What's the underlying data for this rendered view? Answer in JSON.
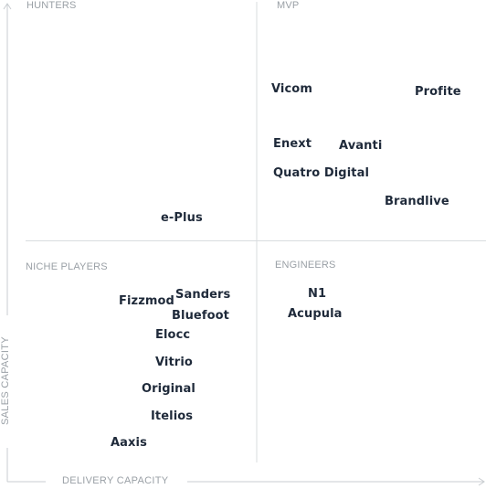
{
  "quadrants": {
    "hunters": "HUNTERS",
    "mvp": "MVP",
    "niche_players": "NICHE PLAYERS",
    "engineers": "ENGINEERS"
  },
  "axes": {
    "x_label": "DELIVERY CAPACITY",
    "y_label": "SALES CAPACITY"
  },
  "companies": {
    "vicom": "Vicom",
    "profite": "Profite",
    "enext": "Enext",
    "avanti": "Avanti",
    "quatro_digital": "Quatro Digital",
    "brandlive": "Brandlive",
    "e_plus": "e-Plus",
    "fizzmod": "Fizzmod",
    "sanders": "Sanders",
    "bluefoot": "Bluefoot",
    "elocc": "Elocc",
    "vitrio": "Vitrio",
    "original": "Original",
    "itelios": "Itelios",
    "aaxis": "Aaxis",
    "n1": "N1",
    "acupula": "Acupula"
  }
}
